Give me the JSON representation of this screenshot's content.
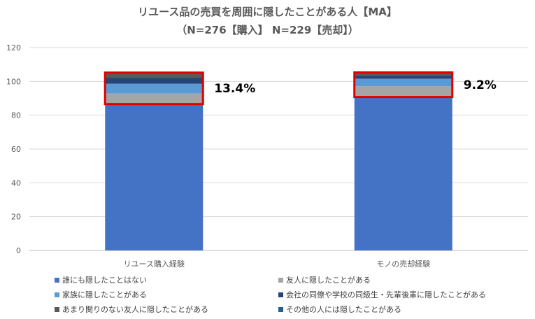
{
  "chart_data": {
    "type": "bar",
    "stacked": true,
    "title": "リユース品の売買を周囲に隠したことがある人【MA】",
    "subtitle": "（N=276【購入】 N=229【売却】）",
    "categories": [
      "リユース購入経験",
      "モノの売却経験"
    ],
    "ylim": [
      0,
      120
    ],
    "yticks": [
      0,
      20,
      40,
      60,
      80,
      100,
      120
    ],
    "grid": true,
    "legend_position": "bottom",
    "series": [
      {
        "name": "誰にも隠したことはない",
        "color": "#4472C4",
        "values": [
          86.6,
          90.8
        ]
      },
      {
        "name": "友人に隠したことがある",
        "color": "#A5A5A5",
        "values": [
          6.2,
          6.4
        ]
      },
      {
        "name": "家族に隠したことがある",
        "color": "#5B9BD5",
        "values": [
          5.8,
          4.4
        ]
      },
      {
        "name": "会社の同僚や学校の同級生・先輩後輩に隠したことがある",
        "color": "#264478",
        "values": [
          3.4,
          1.8
        ]
      },
      {
        "name": "あまり関りのない友人に隠したことがある",
        "color": "#595959",
        "values": [
          2.5,
          1.3
        ]
      },
      {
        "name": "その他の人には隠したことがある",
        "color": "#255E91",
        "values": [
          0.7,
          0.6
        ]
      }
    ],
    "annotations": [
      {
        "category": "リユース購入経験",
        "label": "13.4%",
        "highlight_color": "#E00000"
      },
      {
        "category": "モノの売却経験",
        "label": "9.2%",
        "highlight_color": "#E00000"
      }
    ]
  }
}
